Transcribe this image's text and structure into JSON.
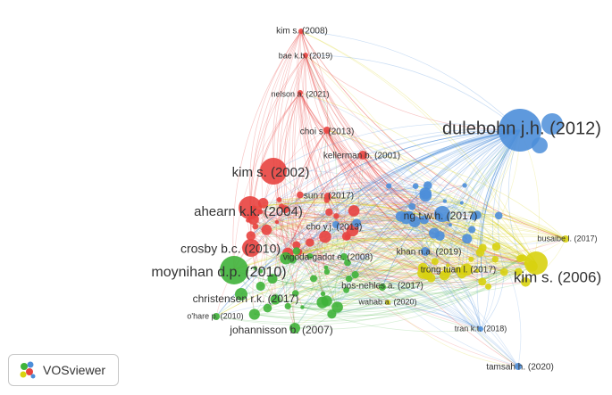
{
  "brand": {
    "name": "VOSviewer",
    "icon": "vosviewer-logo-icon"
  },
  "colors": {
    "cluster_red": "#e8423f",
    "cluster_blue": "#4c8ed9",
    "cluster_yellow": "#d8d20f",
    "cluster_green": "#3fb33a"
  },
  "network": {
    "type": "co-citation network map",
    "clusters": [
      "red",
      "blue",
      "yellow",
      "green"
    ],
    "nodes": [
      {
        "label": "dulebohn j.h. (2012)",
        "cluster": "blue"
      },
      {
        "label": "kim s. (2006)",
        "cluster": "yellow"
      },
      {
        "label": "moynihan d.p. (2010)",
        "cluster": "green"
      },
      {
        "label": "ahearn k.k. (2004)",
        "cluster": "red"
      },
      {
        "label": "kim s. (2002)",
        "cluster": "red"
      },
      {
        "label": "crosby b.c. (2010)",
        "cluster": "red"
      },
      {
        "label": "christensen r.k. (2017)",
        "cluster": "green"
      },
      {
        "label": "johannisson b. (2007)",
        "cluster": "green"
      },
      {
        "label": "ng t.w.h. (2017)",
        "cluster": "blue"
      },
      {
        "label": "kim s. (2008)",
        "cluster": "red"
      },
      {
        "label": "bae k.b. (2019)",
        "cluster": "red"
      },
      {
        "label": "nelson a. (2021)",
        "cluster": "red"
      },
      {
        "label": "choi s. (2013)",
        "cluster": "red"
      },
      {
        "label": "kellerman b. (2001)",
        "cluster": "red"
      },
      {
        "label": "sun r. (2017)",
        "cluster": "red"
      },
      {
        "label": "cho y.j. (2013)",
        "cluster": "blue"
      },
      {
        "label": "khan n.a. (2019)",
        "cluster": "blue"
      },
      {
        "label": "vigoda-gadot e. (2008)",
        "cluster": "green"
      },
      {
        "label": "busaibe l. (2017)",
        "cluster": "yellow"
      },
      {
        "label": "trong tuan l. (2017)",
        "cluster": "yellow"
      },
      {
        "label": "bos-nehles a. (2017)",
        "cluster": "green"
      },
      {
        "label": "wahab a. (2020)",
        "cluster": "yellow"
      },
      {
        "label": "o'hare p. (2010)",
        "cluster": "green"
      },
      {
        "label": "tran k.t. (2018)",
        "cluster": "blue"
      },
      {
        "label": "tamsah h. (2020)",
        "cluster": "blue"
      }
    ]
  }
}
